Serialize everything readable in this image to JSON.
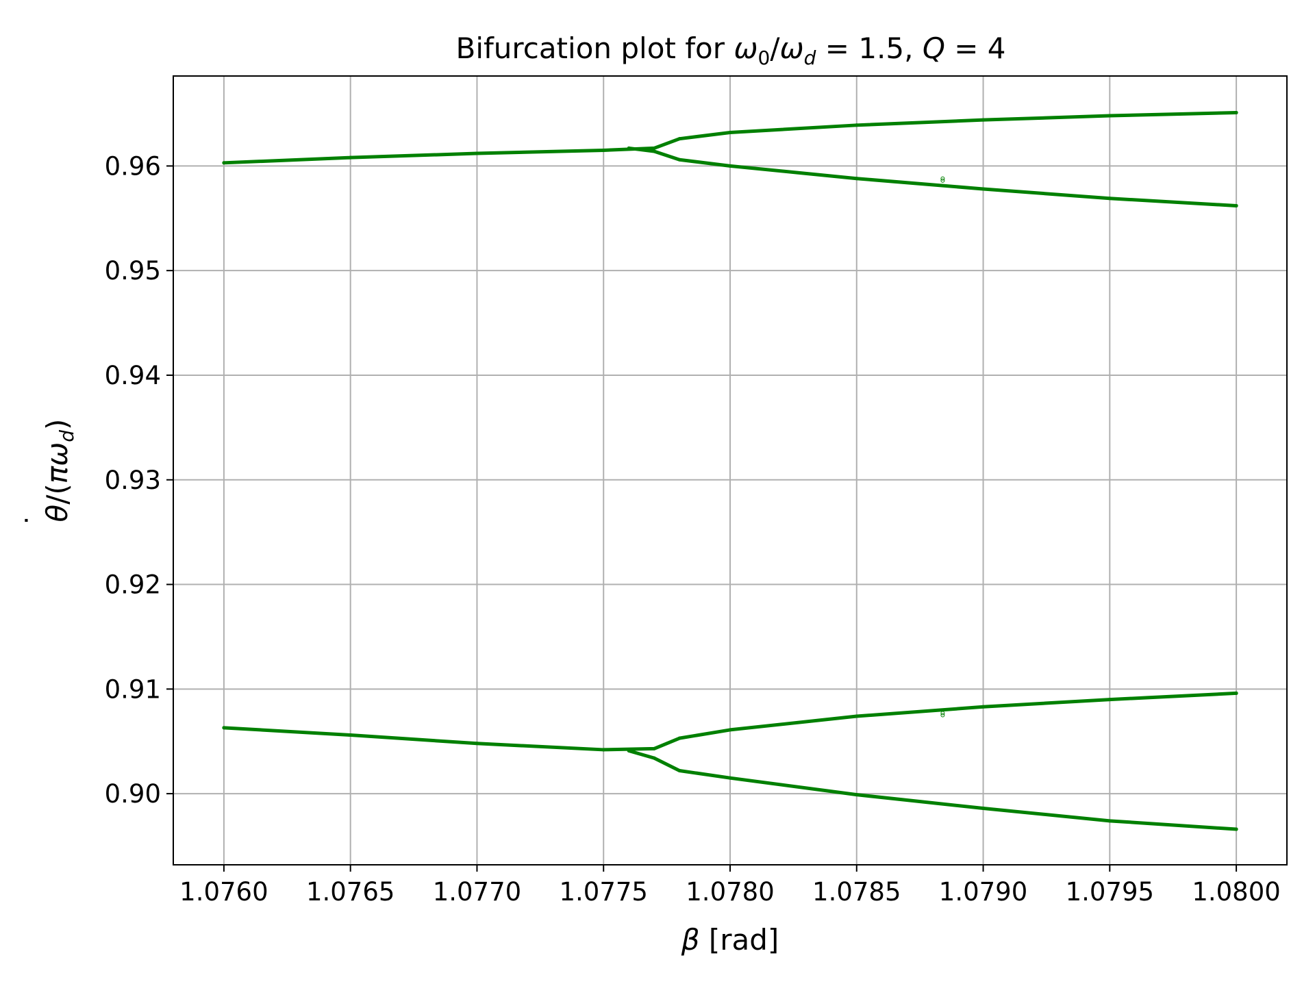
{
  "chart_data": {
    "type": "scatter",
    "title_parts": {
      "prefix": "Bifurcation plot for ",
      "omega": "ω",
      "sub0": "0",
      "slash": "/",
      "sub_d": "d",
      "equals_val": " = 1.5, ",
      "q": "Q",
      "q_val": " = 4"
    },
    "xlabel_parts": {
      "symbol": "β",
      "unit": " [rad]"
    },
    "ylabel_parts": {
      "dot": "˙",
      "theta": "θ",
      "mid": "/(",
      "pi_omega": "πω",
      "sub_d": "d",
      "close": ")"
    },
    "xlim": [
      1.0758,
      1.0802
    ],
    "ylim": [
      0.8932,
      0.9686
    ],
    "xticks": [
      1.076,
      1.0765,
      1.077,
      1.0775,
      1.078,
      1.0785,
      1.079,
      1.0795,
      1.08
    ],
    "xtick_labels": [
      "1.0760",
      "1.0765",
      "1.0770",
      "1.0775",
      "1.0780",
      "1.0785",
      "1.0790",
      "1.0795",
      "1.0800"
    ],
    "yticks": [
      0.9,
      0.91,
      0.92,
      0.93,
      0.94,
      0.95,
      0.96
    ],
    "ytick_labels": [
      "0.90",
      "0.91",
      "0.92",
      "0.93",
      "0.94",
      "0.95",
      "0.96"
    ],
    "grid": true,
    "color": "#008000",
    "grid_color": "#b0b0b0",
    "series": [
      {
        "points": [
          [
            1.076,
            0.9603
          ],
          [
            1.0765,
            0.9608
          ],
          [
            1.077,
            0.9612
          ],
          [
            1.0775,
            0.9615
          ],
          [
            1.0777,
            0.9617
          ],
          [
            1.0778,
            0.9626
          ],
          [
            1.078,
            0.9632
          ],
          [
            1.0785,
            0.9639
          ],
          [
            1.079,
            0.9644
          ],
          [
            1.0795,
            0.9648
          ],
          [
            1.08,
            0.9651
          ]
        ]
      },
      {
        "points": [
          [
            1.0776,
            0.9617
          ],
          [
            1.0777,
            0.9614
          ],
          [
            1.0778,
            0.9606
          ],
          [
            1.078,
            0.96
          ],
          [
            1.0785,
            0.9588
          ],
          [
            1.079,
            0.9578
          ],
          [
            1.0795,
            0.9569
          ],
          [
            1.08,
            0.9562
          ]
        ]
      },
      {
        "points": [
          [
            1.076,
            0.9063
          ],
          [
            1.0765,
            0.9056
          ],
          [
            1.077,
            0.9048
          ],
          [
            1.0775,
            0.9042
          ],
          [
            1.0777,
            0.9043
          ],
          [
            1.0778,
            0.9053
          ],
          [
            1.078,
            0.9061
          ],
          [
            1.0785,
            0.9074
          ],
          [
            1.079,
            0.9083
          ],
          [
            1.0795,
            0.909
          ],
          [
            1.08,
            0.9096
          ]
        ]
      },
      {
        "points": [
          [
            1.0776,
            0.9041
          ],
          [
            1.0777,
            0.9034
          ],
          [
            1.0778,
            0.9022
          ],
          [
            1.078,
            0.9015
          ],
          [
            1.0785,
            0.8999
          ],
          [
            1.079,
            0.8986
          ],
          [
            1.0795,
            0.8974
          ],
          [
            1.08,
            0.8966
          ]
        ]
      }
    ],
    "stray_points": [
      [
        1.07884,
        0.9586
      ],
      [
        1.07884,
        0.9588
      ],
      [
        1.07884,
        0.9075
      ],
      [
        1.07884,
        0.9077
      ]
    ]
  }
}
